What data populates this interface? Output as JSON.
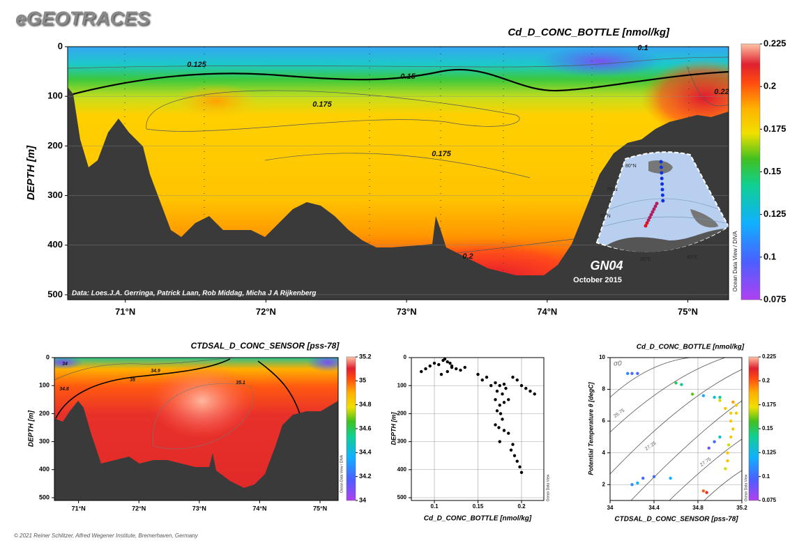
{
  "brand": "eGEOTRACES",
  "copyright": "© 2021 Reiner Schlitzer, Alfred Wegener Institute, Bremerhaven, Germany",
  "chart_data": [
    {
      "type": "section",
      "title": "Cd_D_CONC_BOTTLE [nmol/kg]",
      "ylabel": "DEPTH [m]",
      "yreverse": true,
      "xlim": [
        70.59,
        75.29
      ],
      "xticks": [
        {
          "value": 71,
          "label": "71°N"
        },
        {
          "value": 72,
          "label": "72°N"
        },
        {
          "value": 73,
          "label": "73°N"
        },
        {
          "value": 74,
          "label": "74°N"
        },
        {
          "value": 75,
          "label": "75°N"
        }
      ],
      "ylim": [
        0,
        510
      ],
      "yticks": [
        0,
        100,
        200,
        300,
        400,
        500
      ],
      "colorbar": {
        "lim": [
          0.075,
          0.225
        ],
        "ticks": [
          0.075,
          0.1,
          0.125,
          0.15,
          0.175,
          0.2,
          0.225
        ]
      },
      "contour_labels": [
        0.125,
        0.15,
        0.175,
        0.175,
        0.2,
        0.1,
        0.22
      ],
      "credit": "Data: Loes.J.A. Gerringa, Patrick Laan, Rob Middag, Micha J A Rijkenberg",
      "watermark": "Ocean Data View / DIVA",
      "inset": {
        "station": "GN04",
        "date": "October 2015",
        "labels": [
          "80°N",
          "75°N",
          "70°N",
          "20°E",
          "40°E"
        ]
      }
    },
    {
      "type": "section",
      "title": "CTDSAL_D_CONC_SENSOR [pss-78]",
      "ylabel": "DEPTH [m]",
      "yreverse": true,
      "xlim": [
        70.6,
        75.3
      ],
      "xticks": [
        {
          "value": 71,
          "label": "71°N"
        },
        {
          "value": 72,
          "label": "72°N"
        },
        {
          "value": 73,
          "label": "73°N"
        },
        {
          "value": 74,
          "label": "74°N"
        },
        {
          "value": 75,
          "label": "75°N"
        }
      ],
      "ylim": [
        0,
        510
      ],
      "yticks": [
        0,
        100,
        200,
        300,
        400,
        500
      ],
      "colorbar": {
        "lim": [
          34,
          35.2
        ],
        "ticks": [
          34,
          34.2,
          34.4,
          34.6,
          34.8,
          35,
          35.2
        ]
      },
      "contour_labels": [
        34,
        34.8,
        34.9,
        35,
        35.1
      ],
      "watermark": "Ocean Data View / DIVA"
    },
    {
      "type": "scatter",
      "xlabel": "Cd_D_CONC_BOTTLE [nmol/kg]",
      "ylabel": "DEPTH [m]",
      "yreverse": true,
      "color": "#000000",
      "xlim": [
        0.0736,
        0.2256
      ],
      "xticks": [
        0.1,
        0.15,
        0.2
      ],
      "ylim": [
        0,
        510
      ],
      "yticks": [
        0,
        100,
        200,
        300,
        400,
        500
      ],
      "grid": true,
      "x": [
        0.085,
        0.09,
        0.095,
        0.1,
        0.105,
        0.11,
        0.112,
        0.115,
        0.118,
        0.12,
        0.125,
        0.13,
        0.135,
        0.108,
        0.115,
        0.12,
        0.15,
        0.155,
        0.16,
        0.165,
        0.17,
        0.172,
        0.175,
        0.178,
        0.18,
        0.182,
        0.185,
        0.19,
        0.195,
        0.2,
        0.205,
        0.21,
        0.215,
        0.17,
        0.175,
        0.18,
        0.172,
        0.176,
        0.178,
        0.17,
        0.174,
        0.18,
        0.175,
        0.185,
        0.19,
        0.188,
        0.192,
        0.195,
        0.198,
        0.2
      ],
      "values": [
        50,
        40,
        30,
        20,
        25,
        10,
        5,
        15,
        20,
        30,
        40,
        45,
        35,
        60,
        50,
        35,
        60,
        80,
        70,
        100,
        90,
        120,
        100,
        130,
        95,
        110,
        150,
        70,
        80,
        100,
        110,
        120,
        130,
        150,
        170,
        160,
        190,
        200,
        220,
        240,
        250,
        260,
        300,
        270,
        310,
        330,
        350,
        370,
        390,
        410
      ],
      "watermark": "Ocean Data View"
    },
    {
      "type": "ts",
      "title": "Cd_D_CONC_BOTTLE [nmol/kg]",
      "xlabel": "CTDSAL_D_CONC_SENSOR [pss-78]",
      "ylabel": "Potential Temperature θ [degC]",
      "xlim": [
        34,
        35.2
      ],
      "xticks": [
        34,
        34.4,
        34.8,
        35.2
      ],
      "ylim": [
        1,
        10
      ],
      "yticks": [
        2,
        4,
        6,
        8,
        10
      ],
      "x": [
        34.16,
        34.2,
        34.25,
        34.6,
        34.65,
        34.75,
        34.85,
        34.95,
        35.0,
        35.05,
        35.1,
        35.1,
        35.12,
        35.1,
        35.08,
        35.07,
        35.07,
        35.05,
        34.85,
        34.88,
        34.2,
        34.25,
        34.3,
        34.4,
        34.55,
        34.95,
        34.9,
        35.0,
        35.15,
        35.15,
        35.12,
        35.0
      ],
      "values": [
        9.0,
        9.0,
        9.0,
        8.4,
        8.3,
        7.7,
        7.6,
        7.5,
        7.3,
        6.8,
        6.5,
        6.0,
        5.5,
        5.0,
        4.5,
        4.0,
        3.5,
        3.0,
        1.6,
        1.5,
        2.0,
        2.1,
        2.4,
        2.5,
        2.4,
        4.7,
        4.3,
        5.0,
        6.5,
        7.0,
        7.2,
        7.5
      ],
      "color_values": [
        0.11,
        0.1,
        0.1,
        0.15,
        0.14,
        0.16,
        0.12,
        0.13,
        0.17,
        0.18,
        0.18,
        0.18,
        0.18,
        0.18,
        0.17,
        0.18,
        0.18,
        0.17,
        0.2,
        0.21,
        0.11,
        0.12,
        0.1,
        0.1,
        0.12,
        0.1,
        0.09,
        0.13,
        0.18,
        0.18,
        0.19,
        0.14
      ],
      "colorbar": {
        "lim": [
          0.075,
          0.225
        ],
        "ticks": [
          0.075,
          0.1,
          0.125,
          0.15,
          0.175,
          0.2,
          0.225
        ]
      },
      "isopycnals": [
        26.75,
        27.25,
        27.75
      ],
      "sigma_label": "σ0",
      "watermark": "Ocean Data View"
    }
  ]
}
